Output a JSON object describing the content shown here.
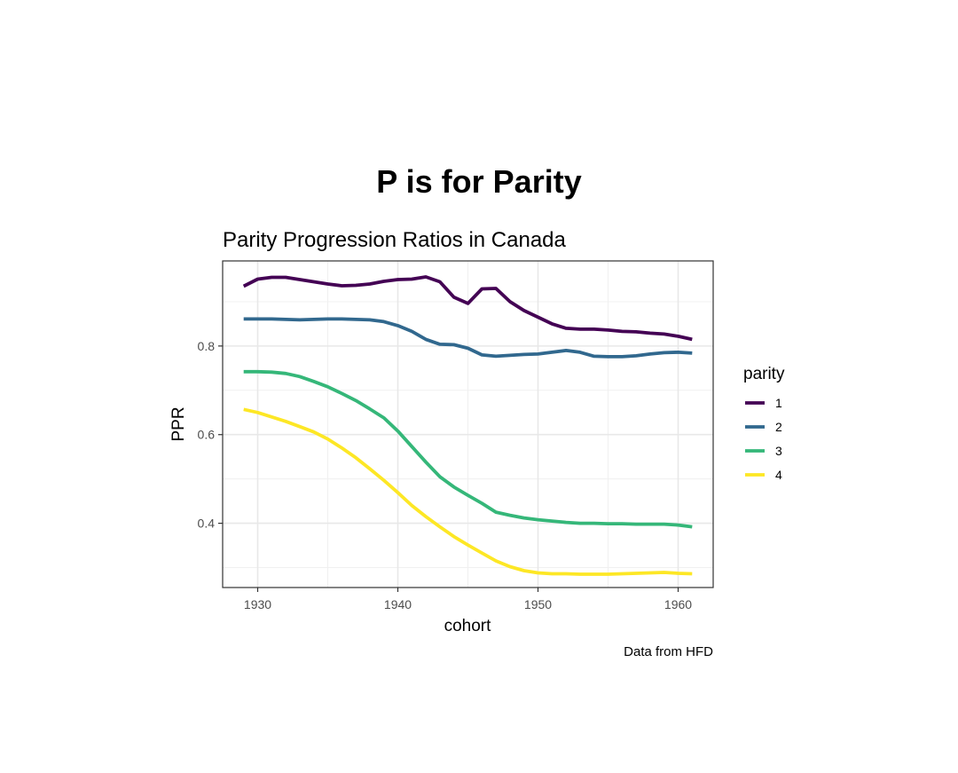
{
  "title": "P is for Parity",
  "chart_data": {
    "type": "line",
    "title": "Parity Progression Ratios in Canada",
    "xlabel": "cohort",
    "ylabel": "PPR",
    "caption": "Data from HFD",
    "xlim": [
      1927.5,
      1962.5
    ],
    "ylim": [
      0.255,
      0.992
    ],
    "x_ticks": [
      1930,
      1940,
      1950,
      1960
    ],
    "x_tick_labels": [
      "1930",
      "1940",
      "1950",
      "1960"
    ],
    "y_ticks": [
      0.4,
      0.6,
      0.8
    ],
    "y_tick_labels": [
      "0.4",
      "0.6",
      "0.8"
    ],
    "grid": true,
    "legend_title": "parity",
    "legend_position": "right",
    "x": [
      1929,
      1930,
      1931,
      1932,
      1933,
      1934,
      1935,
      1936,
      1937,
      1938,
      1939,
      1940,
      1941,
      1942,
      1943,
      1944,
      1945,
      1946,
      1947,
      1948,
      1949,
      1950,
      1951,
      1952,
      1953,
      1954,
      1955,
      1956,
      1957,
      1958,
      1959,
      1960,
      1961
    ],
    "series": [
      {
        "name": "1",
        "color": "#440154",
        "values": [
          0.935,
          0.951,
          0.955,
          0.955,
          0.95,
          0.945,
          0.94,
          0.936,
          0.937,
          0.94,
          0.946,
          0.95,
          0.951,
          0.956,
          0.945,
          0.91,
          0.896,
          0.929,
          0.93,
          0.9,
          0.88,
          0.865,
          0.85,
          0.84,
          0.838,
          0.838,
          0.836,
          0.833,
          0.832,
          0.829,
          0.827,
          0.822,
          0.815
        ]
      },
      {
        "name": "2",
        "color": "#31688E",
        "values": [
          0.861,
          0.861,
          0.861,
          0.86,
          0.859,
          0.86,
          0.861,
          0.861,
          0.86,
          0.859,
          0.855,
          0.846,
          0.833,
          0.815,
          0.804,
          0.803,
          0.795,
          0.78,
          0.777,
          0.779,
          0.781,
          0.782,
          0.786,
          0.79,
          0.786,
          0.777,
          0.776,
          0.776,
          0.778,
          0.782,
          0.785,
          0.786,
          0.784
        ]
      },
      {
        "name": "3",
        "color": "#35B779",
        "values": [
          0.742,
          0.742,
          0.741,
          0.738,
          0.731,
          0.72,
          0.708,
          0.693,
          0.677,
          0.658,
          0.638,
          0.608,
          0.573,
          0.538,
          0.505,
          0.482,
          0.463,
          0.445,
          0.425,
          0.418,
          0.412,
          0.408,
          0.405,
          0.402,
          0.4,
          0.4,
          0.399,
          0.399,
          0.398,
          0.398,
          0.398,
          0.396,
          0.392
        ]
      },
      {
        "name": "4",
        "color": "#FDE725",
        "values": [
          0.657,
          0.65,
          0.64,
          0.63,
          0.618,
          0.606,
          0.59,
          0.57,
          0.548,
          0.523,
          0.497,
          0.469,
          0.44,
          0.415,
          0.392,
          0.37,
          0.351,
          0.333,
          0.315,
          0.302,
          0.293,
          0.288,
          0.286,
          0.286,
          0.285,
          0.285,
          0.285,
          0.286,
          0.287,
          0.288,
          0.289,
          0.287,
          0.286
        ]
      }
    ]
  }
}
